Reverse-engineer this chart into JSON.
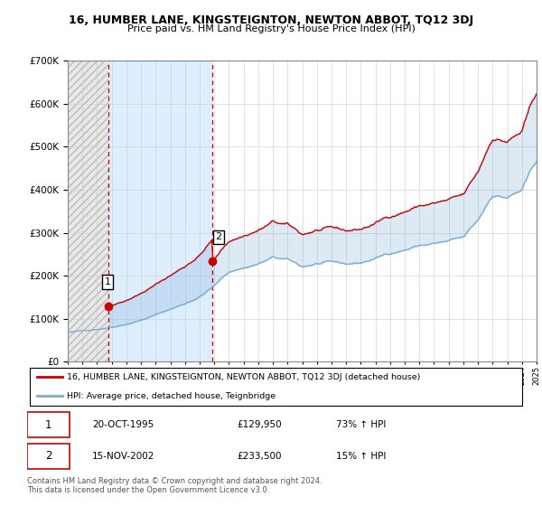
{
  "title": "16, HUMBER LANE, KINGSTEIGNTON, NEWTON ABBOT, TQ12 3DJ",
  "subtitle": "Price paid vs. HM Land Registry's House Price Index (HPI)",
  "ylim": [
    0,
    700000
  ],
  "yticks": [
    0,
    100000,
    200000,
    300000,
    400000,
    500000,
    600000,
    700000
  ],
  "ytick_labels": [
    "£0",
    "£100K",
    "£200K",
    "£300K",
    "£400K",
    "£500K",
    "£600K",
    "£700K"
  ],
  "transaction1": {
    "date": "20-OCT-1995",
    "price": 129950,
    "pct": "73%",
    "direction": "↑"
  },
  "transaction2": {
    "date": "15-NOV-2002",
    "price": 233500,
    "pct": "15%",
    "direction": "↑"
  },
  "tx1_x": 1995.8,
  "tx1_y": 129950,
  "tx2_x": 2002.88,
  "tx2_y": 233500,
  "hpi_line_color": "#7aadd4",
  "price_line_color": "#cc0000",
  "fill_color": "#ddeeff",
  "legend_label1": "16, HUMBER LANE, KINGSTEIGNTON, NEWTON ABBOT, TQ12 3DJ (detached house)",
  "legend_label2": "HPI: Average price, detached house, Teignbridge",
  "footer": "Contains HM Land Registry data © Crown copyright and database right 2024.\nThis data is licensed under the Open Government Licence v3.0.",
  "xmin": 1993,
  "xmax": 2025
}
